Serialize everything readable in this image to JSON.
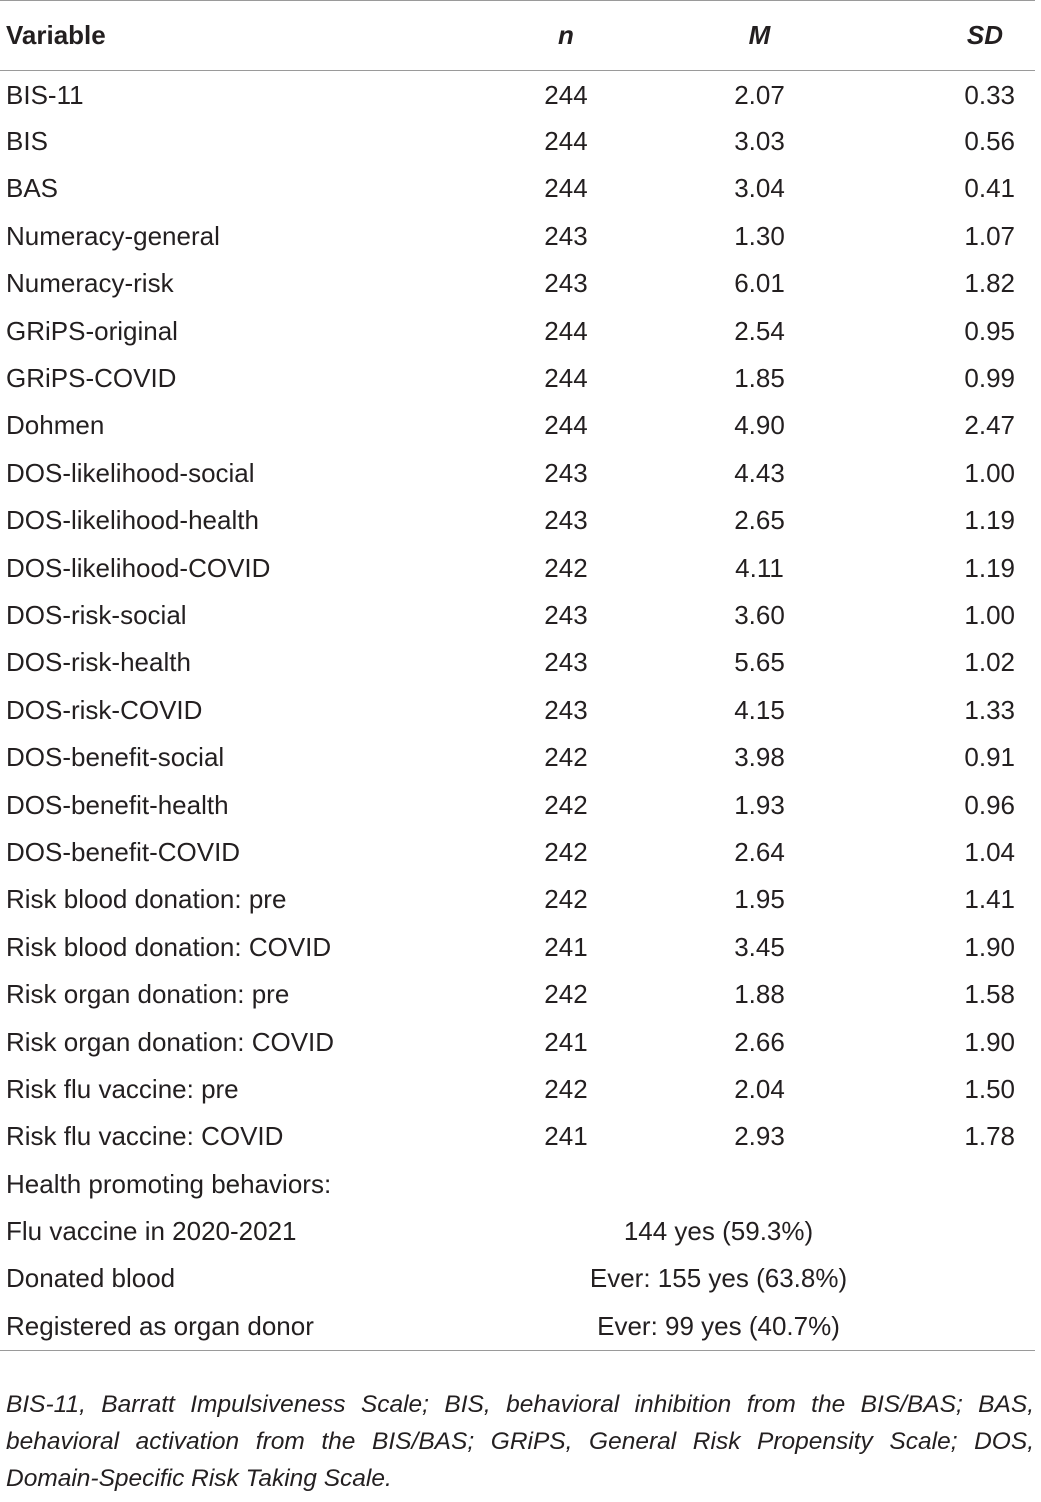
{
  "table": {
    "headers": {
      "variable": "Variable",
      "n": "n",
      "m": "M",
      "sd": "SD"
    },
    "rows": [
      {
        "variable": "BIS-11",
        "n": "244",
        "m": "2.07",
        "sd": "0.33"
      },
      {
        "variable": "BIS",
        "n": "244",
        "m": "3.03",
        "sd": "0.56"
      },
      {
        "variable": "BAS",
        "n": "244",
        "m": "3.04",
        "sd": "0.41"
      },
      {
        "variable": "Numeracy-general",
        "n": "243",
        "m": "1.30",
        "sd": "1.07"
      },
      {
        "variable": "Numeracy-risk",
        "n": "243",
        "m": "6.01",
        "sd": "1.82"
      },
      {
        "variable": "GRiPS-original",
        "n": "244",
        "m": "2.54",
        "sd": "0.95"
      },
      {
        "variable": "GRiPS-COVID",
        "n": "244",
        "m": "1.85",
        "sd": "0.99"
      },
      {
        "variable": "Dohmen",
        "n": "244",
        "m": "4.90",
        "sd": "2.47"
      },
      {
        "variable": "DOS-likelihood-social",
        "n": "243",
        "m": "4.43",
        "sd": "1.00"
      },
      {
        "variable": "DOS-likelihood-health",
        "n": "243",
        "m": "2.65",
        "sd": "1.19"
      },
      {
        "variable": "DOS-likelihood-COVID",
        "n": "242",
        "m": "4.11",
        "sd": "1.19"
      },
      {
        "variable": "DOS-risk-social",
        "n": "243",
        "m": "3.60",
        "sd": "1.00"
      },
      {
        "variable": "DOS-risk-health",
        "n": "243",
        "m": "5.65",
        "sd": "1.02"
      },
      {
        "variable": "DOS-risk-COVID",
        "n": "243",
        "m": "4.15",
        "sd": "1.33"
      },
      {
        "variable": "DOS-benefit-social",
        "n": "242",
        "m": "3.98",
        "sd": "0.91"
      },
      {
        "variable": "DOS-benefit-health",
        "n": "242",
        "m": "1.93",
        "sd": "0.96"
      },
      {
        "variable": "DOS-benefit-COVID",
        "n": "242",
        "m": "2.64",
        "sd": "1.04"
      },
      {
        "variable": "Risk blood donation: pre",
        "n": "242",
        "m": "1.95",
        "sd": "1.41"
      },
      {
        "variable": "Risk blood donation: COVID",
        "n": "241",
        "m": "3.45",
        "sd": "1.90"
      },
      {
        "variable": "Risk organ donation: pre",
        "n": "242",
        "m": "1.88",
        "sd": "1.58"
      },
      {
        "variable": "Risk organ donation: COVID",
        "n": "241",
        "m": "2.66",
        "sd": "1.90"
      },
      {
        "variable": "Risk flu vaccine: pre",
        "n": "242",
        "m": "2.04",
        "sd": "1.50"
      },
      {
        "variable": "Risk flu vaccine: COVID",
        "n": "241",
        "m": "2.93",
        "sd": "1.78"
      }
    ],
    "section_label": "Health promoting behaviors:",
    "behaviors": [
      {
        "variable": "Flu vaccine in 2020-2021",
        "value": "144 yes (59.3%)"
      },
      {
        "variable": "Donated blood",
        "value": "Ever: 155 yes (63.8%)"
      },
      {
        "variable": "Registered as organ donor",
        "value": "Ever: 99 yes (40.7%)"
      }
    ]
  },
  "footnote": "BIS-11, Barratt Impulsiveness Scale; BIS, behavioral inhibition from the BIS/BAS; BAS, behavioral activation from the BIS/BAS; GRiPS, General Risk Propensity Scale; DOS, Domain-Specific Risk Taking Scale."
}
